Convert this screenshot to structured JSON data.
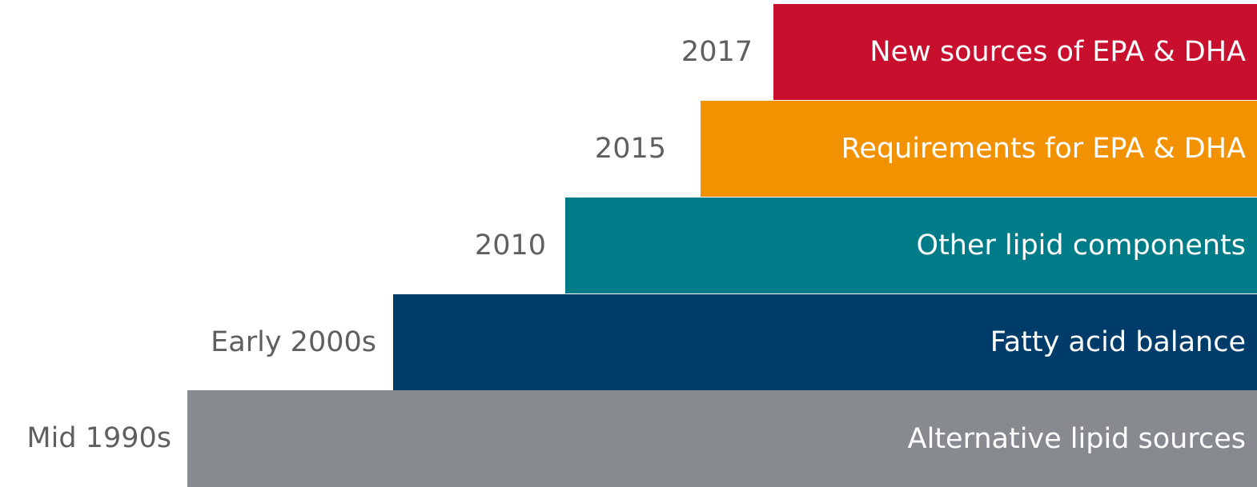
{
  "steps": [
    {
      "year": "2017",
      "label": "New sources of EPA & DHA"
    },
    {
      "year": "2015",
      "label": "Requirements for EPA & DHA"
    },
    {
      "year": "2010",
      "label": "Other lipid components"
    },
    {
      "year": "Early 2000s",
      "label": "Fatty acid balance"
    },
    {
      "year": "Mid 1990s",
      "label": "Alternative lipid sources"
    }
  ]
}
